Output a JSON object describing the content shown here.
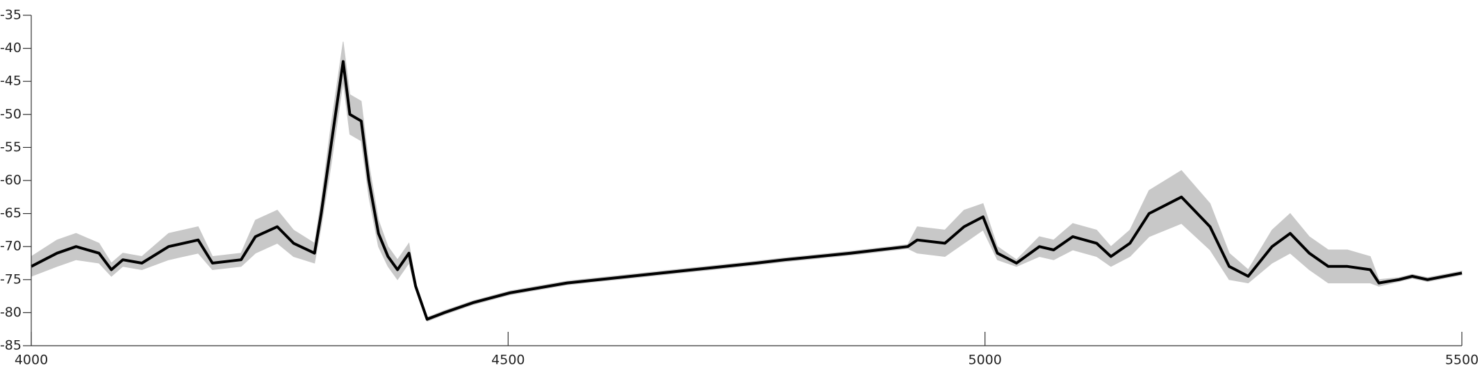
{
  "chart_data": {
    "type": "line",
    "x": [
      4000,
      4027,
      4047,
      4071,
      4084,
      4096,
      4116,
      4144,
      4175,
      4190,
      4220,
      4235,
      4258,
      4275,
      4297,
      4304,
      4314,
      4327,
      4334,
      4346,
      4354,
      4364,
      4374,
      4384,
      4396,
      4403,
      4415,
      4433,
      4463,
      4502,
      4562,
      4661,
      4760,
      4790,
      4859,
      4919,
      4929,
      4958,
      4978,
      4998,
      5013,
      5033,
      5057,
      5072,
      5092,
      5117,
      5132,
      5152,
      5172,
      5206,
      5236,
      5256,
      5276,
      5301,
      5320,
      5340,
      5360,
      5380,
      5404,
      5413,
      5434,
      5448,
      5464,
      5500
    ],
    "values": [
      -73,
      -71,
      -70,
      -71,
      -73.5,
      -72,
      -72.5,
      -70,
      -69,
      -72.5,
      -72,
      -68.5,
      -67,
      -69.5,
      -71,
      -65,
      -55,
      -42,
      -50,
      -51,
      -60,
      -68,
      -71.5,
      -73.5,
      -71,
      -76,
      -81,
      -80,
      -78.5,
      -77,
      -75.5,
      -74,
      -72.5,
      -72,
      -71,
      -70,
      -69,
      -69.5,
      -67,
      -65.5,
      -71,
      -72.5,
      -70,
      -70.5,
      -68.5,
      -69.5,
      -71.5,
      -69.5,
      -65,
      -62.5,
      -67,
      -73,
      -74.5,
      -70,
      -68,
      -71,
      -73,
      -73,
      -73.5,
      -75.5,
      -75,
      -74.5,
      -75,
      -74
    ],
    "color": "#000000",
    "band_upper": [
      -71.5,
      -69,
      -68,
      -69.5,
      -72.5,
      -71,
      -71.5,
      -68,
      -67,
      -71.5,
      -71,
      -66,
      -64.5,
      -67.5,
      -69.5,
      -63,
      -52,
      -39,
      -47,
      -48,
      -57.5,
      -66,
      -70,
      -72,
      -69.5,
      -75.5,
      -80.7,
      -79.7,
      -78.2,
      -76.7,
      -75.2,
      -73.7,
      -72.2,
      -71.7,
      -70.7,
      -69.7,
      -67,
      -67.5,
      -64.5,
      -63.5,
      -70,
      -72,
      -68.5,
      -69,
      -66.5,
      -67.5,
      -70,
      -67.5,
      -61.5,
      -58.5,
      -63.5,
      -71,
      -73.5,
      -67.5,
      -65,
      -68.5,
      -70.5,
      -70.5,
      -71.5,
      -75,
      -74.7,
      -74.2,
      -74.7,
      -73.7
    ],
    "band_lower": [
      -74.5,
      -73,
      -72,
      -72.5,
      -74.5,
      -73,
      -73.5,
      -72,
      -71,
      -73.5,
      -73,
      -71,
      -69.5,
      -71.5,
      -72.5,
      -67,
      -58,
      -45,
      -53,
      -54,
      -62.5,
      -70,
      -73,
      -75,
      -72.5,
      -76.5,
      -81.3,
      -80.3,
      -78.8,
      -77.3,
      -75.8,
      -74.3,
      -72.8,
      -72.3,
      -71.3,
      -70.3,
      -71,
      -71.5,
      -69.5,
      -67.5,
      -72,
      -73,
      -71.5,
      -72,
      -70.5,
      -71.5,
      -73,
      -71.5,
      -68.5,
      -66.5,
      -70.5,
      -75,
      -75.5,
      -72.5,
      -71,
      -73.5,
      -75.5,
      -75.5,
      -75.5,
      -76,
      -75.3,
      -74.8,
      -75.3,
      -74.3
    ],
    "band_color": "#c8c8c8",
    "xlim": [
      4000,
      5500
    ],
    "xticks": [
      4000,
      4500,
      5000,
      5500
    ],
    "ylim": [
      -85,
      -35
    ],
    "yticks": [
      -35,
      -40,
      -45,
      -50,
      -55,
      -60,
      -65,
      -70,
      -75,
      -80,
      -85
    ],
    "grid": false
  }
}
